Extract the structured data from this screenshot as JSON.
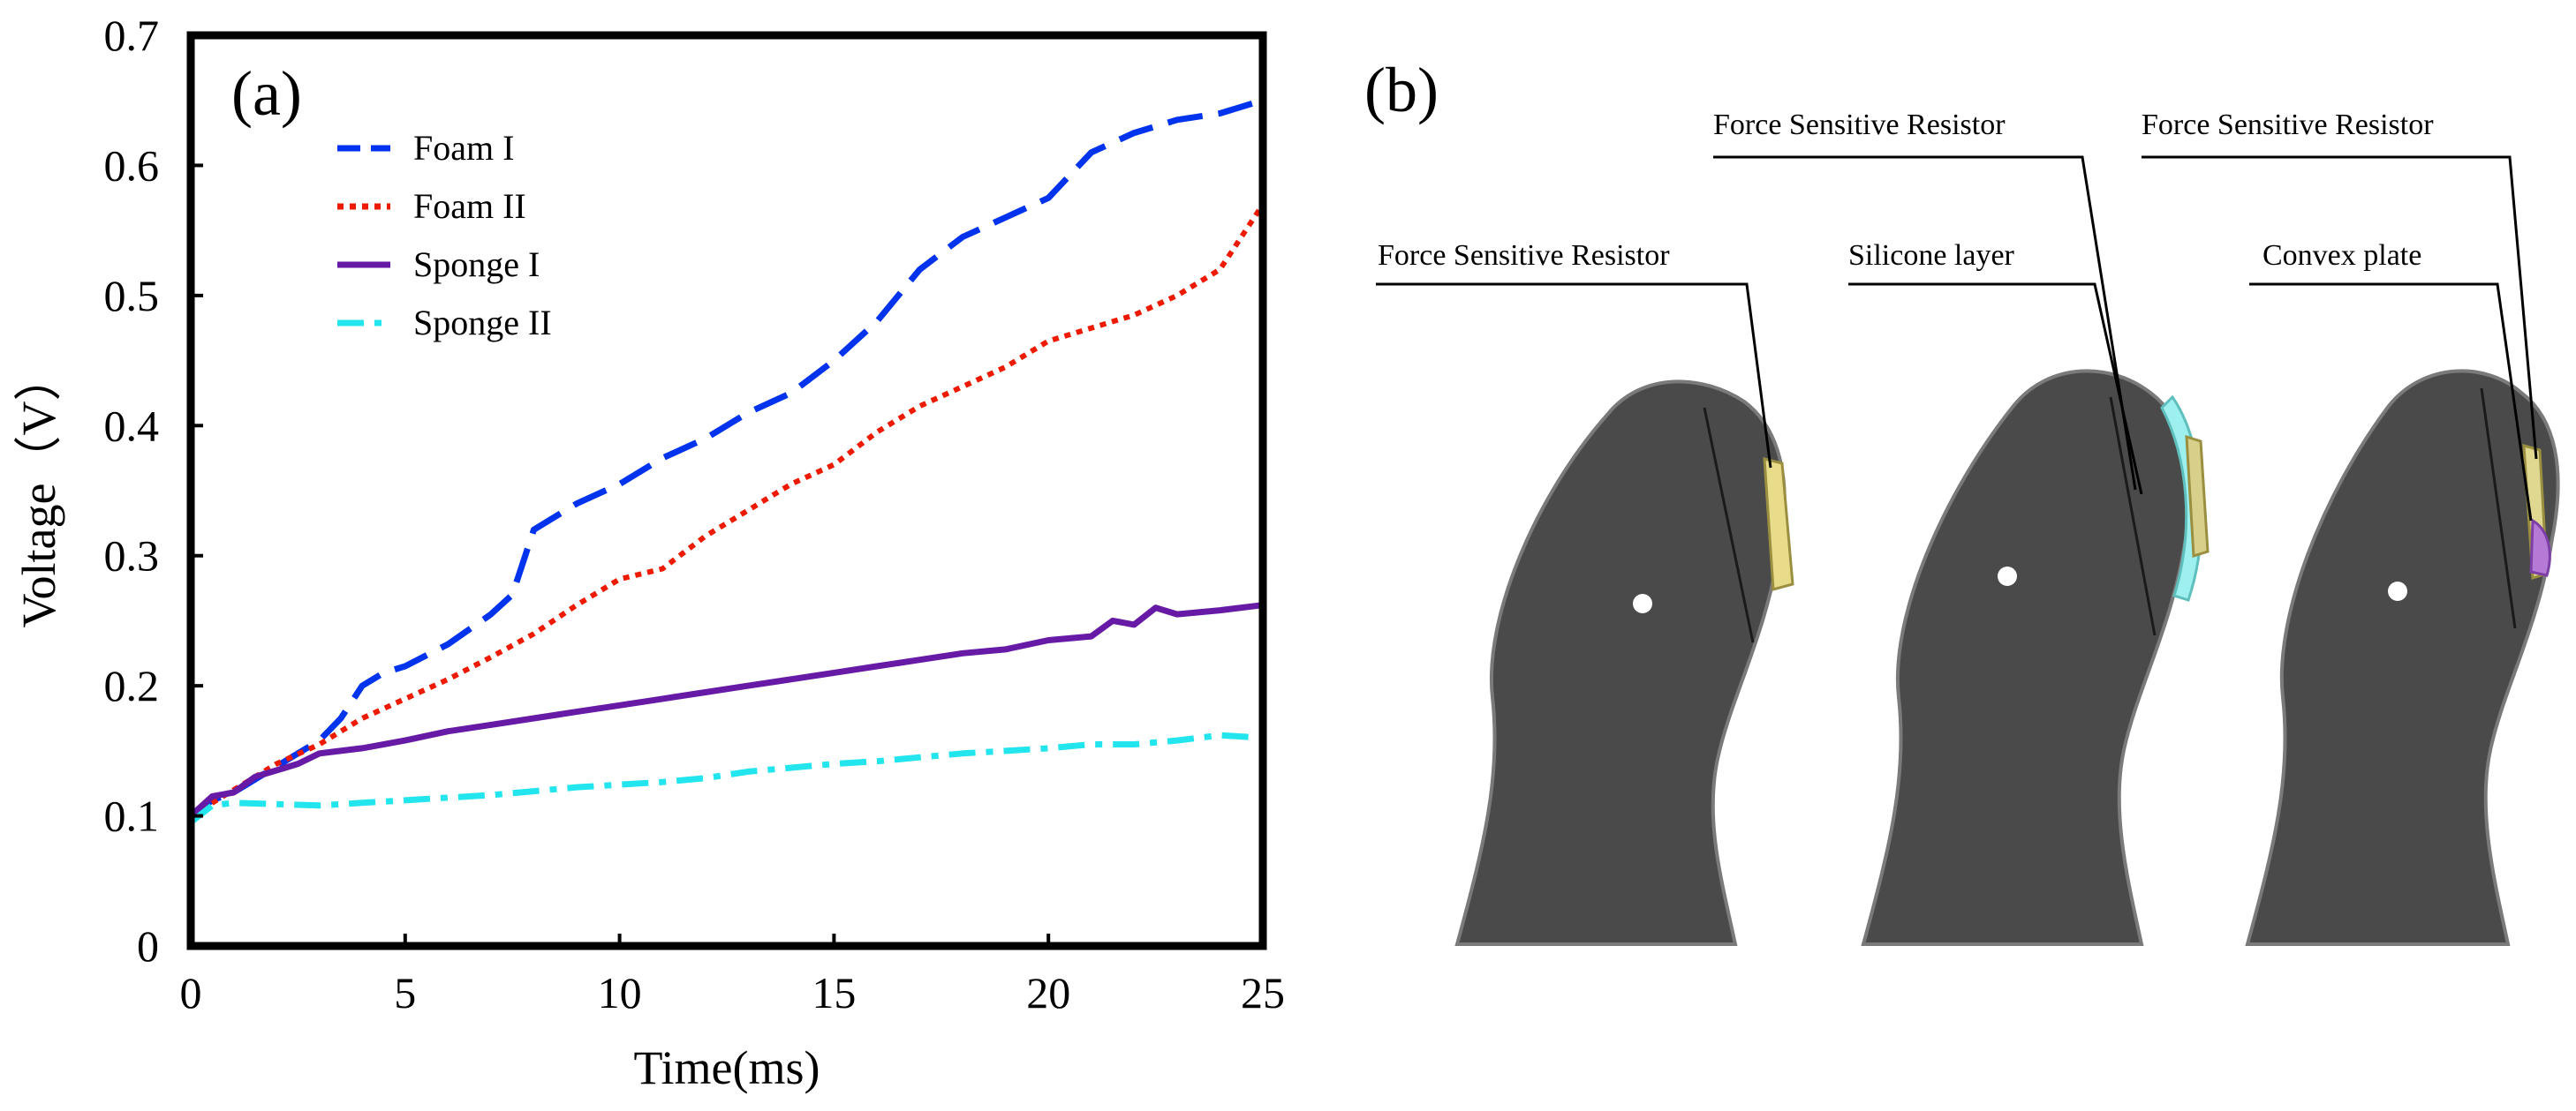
{
  "chart_data": {
    "type": "line",
    "panel_label": "(a)",
    "title": "",
    "xlabel": "Time(ms)",
    "ylabel": "Voltage（V）",
    "xlim": [
      0,
      25
    ],
    "ylim": [
      0,
      0.7
    ],
    "x_ticks": [
      0,
      5,
      10,
      15,
      20,
      25
    ],
    "y_ticks": [
      0,
      0.1,
      0.2,
      0.3,
      0.4,
      0.5,
      0.6,
      0.7
    ],
    "x_tick_labels": [
      "0",
      "5",
      "10",
      "15",
      "20",
      "25"
    ],
    "y_tick_labels": [
      "0",
      "0.1",
      "0.2",
      "0.3",
      "0.4",
      "0.5",
      "0.6",
      "0.7"
    ],
    "grid": false,
    "legend_position": "top-left",
    "series": [
      {
        "name": "Foam I",
        "color": "#0033ee",
        "style": "dashed",
        "x": [
          0,
          0.5,
          1,
          1.5,
          2,
          2.5,
          3,
          3.5,
          4,
          4.5,
          5,
          6,
          7,
          7.5,
          8,
          9,
          10,
          11,
          12,
          13,
          14,
          15,
          16,
          17,
          18,
          19,
          20,
          21,
          22,
          23,
          24,
          25
        ],
        "y": [
          0.1,
          0.112,
          0.118,
          0.128,
          0.138,
          0.148,
          0.158,
          0.175,
          0.2,
          0.21,
          0.215,
          0.232,
          0.255,
          0.27,
          0.32,
          0.34,
          0.355,
          0.375,
          0.39,
          0.41,
          0.425,
          0.45,
          0.48,
          0.52,
          0.545,
          0.56,
          0.575,
          0.61,
          0.625,
          0.635,
          0.64,
          0.65
        ]
      },
      {
        "name": "Foam II",
        "color": "#ee1a00",
        "style": "dotted",
        "x": [
          0,
          1,
          2,
          3,
          4,
          5,
          6,
          7,
          8,
          9,
          10,
          11,
          12,
          13,
          14,
          15,
          16,
          17,
          18,
          19,
          20,
          21,
          22,
          23,
          24,
          25
        ],
        "y": [
          0.1,
          0.12,
          0.14,
          0.155,
          0.175,
          0.19,
          0.205,
          0.222,
          0.24,
          0.262,
          0.282,
          0.29,
          0.315,
          0.335,
          0.355,
          0.37,
          0.395,
          0.415,
          0.43,
          0.445,
          0.465,
          0.475,
          0.485,
          0.5,
          0.52,
          0.57
        ]
      },
      {
        "name": "Sponge I",
        "color": "#661aa6",
        "style": "solid",
        "x": [
          0,
          0.5,
          1,
          1.5,
          2,
          2.5,
          3,
          4,
          5,
          6,
          7,
          8,
          9,
          10,
          11,
          12,
          13,
          14,
          15,
          16,
          17,
          18,
          19,
          20,
          21,
          21.5,
          22,
          22.5,
          23,
          24,
          25
        ],
        "y": [
          0.1,
          0.115,
          0.118,
          0.13,
          0.135,
          0.14,
          0.148,
          0.152,
          0.158,
          0.165,
          0.17,
          0.175,
          0.18,
          0.185,
          0.19,
          0.195,
          0.2,
          0.205,
          0.21,
          0.215,
          0.22,
          0.225,
          0.228,
          0.235,
          0.238,
          0.25,
          0.247,
          0.26,
          0.255,
          0.258,
          0.262
        ]
      },
      {
        "name": "Sponge II",
        "color": "#22e5ee",
        "style": "dash-dot",
        "x": [
          0,
          0.5,
          1,
          2,
          3,
          4,
          5,
          6,
          7,
          8,
          9,
          10,
          11,
          12,
          13,
          14,
          15,
          16,
          17,
          18,
          19,
          20,
          21,
          22,
          23,
          24,
          25
        ],
        "y": [
          0.095,
          0.108,
          0.11,
          0.109,
          0.108,
          0.11,
          0.112,
          0.114,
          0.116,
          0.119,
          0.122,
          0.124,
          0.126,
          0.129,
          0.134,
          0.137,
          0.14,
          0.142,
          0.145,
          0.148,
          0.15,
          0.152,
          0.155,
          0.155,
          0.158,
          0.162,
          0.16
        ]
      }
    ]
  },
  "panel_b": {
    "label": "(b)",
    "device_color": "#4a4a4a",
    "views": [
      {
        "name": "fsr-only",
        "callouts": [
          "Force Sensitive Resistor"
        ],
        "accent_color": "#e8dc8a"
      },
      {
        "name": "silicone-layer",
        "callouts": [
          "Force Sensitive Resistor",
          "Silicone layer"
        ],
        "accent_color": "#9ef0ee"
      },
      {
        "name": "convex-plate",
        "callouts": [
          "Force Sensitive Resistor",
          "Convex plate"
        ],
        "accent_color": "#b57ad6"
      }
    ]
  }
}
